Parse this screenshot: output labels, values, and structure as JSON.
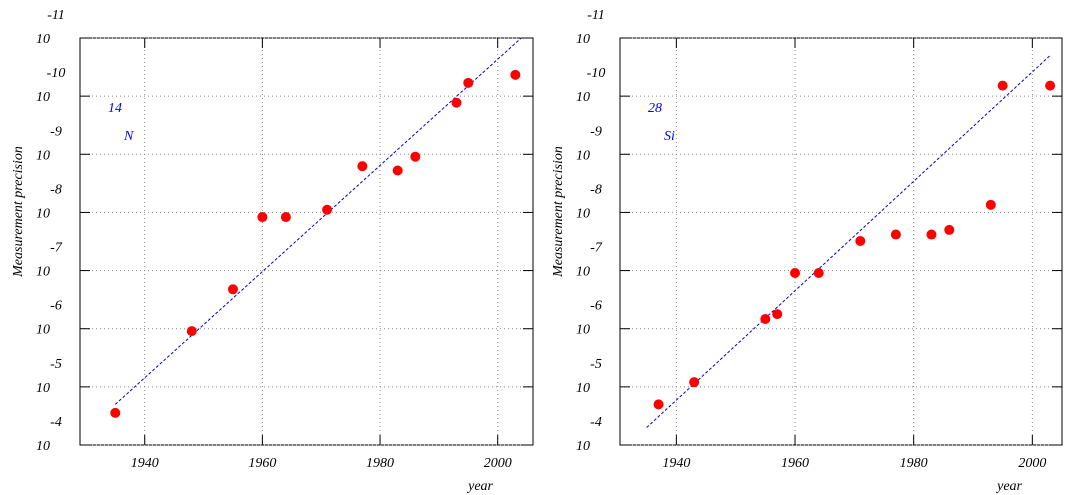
{
  "chart_data": [
    {
      "type": "scatter",
      "annotation": {
        "superscript": "14",
        "text": "N"
      },
      "x_label": "year",
      "y_label": "Measurement precision",
      "x": [
        1935,
        1948,
        1955,
        1960,
        1964,
        1971,
        1977,
        1983,
        1986,
        1993,
        1995,
        2003
      ],
      "values": [
        2.8e-05,
        1.1e-06,
        2.1e-07,
        1.2e-08,
        1.2e-08,
        9e-09,
        1.6e-09,
        1.9e-09,
        1.1e-09,
        1.3e-10,
        5.9e-11,
        4.3e-11
      ],
      "color": "#ff0000",
      "fit": {
        "x": [
          1935,
          2004
        ],
        "values": [
          2e-05,
          1e-11
        ],
        "color": "#0000cc"
      },
      "xlim": [
        1929,
        2006
      ],
      "xticks": [
        1940,
        1960,
        1980,
        2000
      ],
      "ylim": [
        0.0001,
        1e-11
      ],
      "log_y": true,
      "grid": true,
      "yticks": [
        {
          "value": 0.0001,
          "label": "10",
          "exponent": "-4"
        },
        {
          "value": 1e-05,
          "label": "10",
          "exponent": "-5"
        },
        {
          "value": 1e-06,
          "label": "10",
          "exponent": "-6"
        },
        {
          "value": 1e-07,
          "label": "10",
          "exponent": "-7"
        },
        {
          "value": 1e-08,
          "label": "10",
          "exponent": "-8"
        },
        {
          "value": 1e-09,
          "label": "10",
          "exponent": "-9"
        },
        {
          "value": 1e-10,
          "label": "10",
          "exponent": "-10"
        },
        {
          "value": 1e-11,
          "label": "10",
          "exponent": "-11"
        }
      ]
    },
    {
      "type": "scatter",
      "annotation": {
        "superscript": "28",
        "text": "Si"
      },
      "x_label": "year",
      "y_label": "Measurement precision",
      "x": [
        1937,
        1943,
        1955,
        1957,
        1960,
        1964,
        1971,
        1977,
        1983,
        1986,
        1993,
        1995,
        2003
      ],
      "values": [
        2e-05,
        8.3e-06,
        6.8e-07,
        5.6e-07,
        1.1e-07,
        1.1e-07,
        3.1e-08,
        2.4e-08,
        2.4e-08,
        2e-08,
        7.4e-09,
        6.6e-11,
        6.6e-11
      ],
      "color": "#ff0000",
      "fit": {
        "x": [
          1935,
          2003
        ],
        "values": [
          5e-05,
          2e-11
        ],
        "color": "#0000cc"
      },
      "xlim": [
        1930.5,
        2005
      ],
      "xticks": [
        1940,
        1960,
        1980,
        2000
      ],
      "ylim": [
        0.0001,
        1e-11
      ],
      "log_y": true,
      "grid": true,
      "yticks": [
        {
          "value": 0.0001,
          "label": "10",
          "exponent": "-4"
        },
        {
          "value": 1e-05,
          "label": "10",
          "exponent": "-5"
        },
        {
          "value": 1e-06,
          "label": "10",
          "exponent": "-6"
        },
        {
          "value": 1e-07,
          "label": "10",
          "exponent": "-7"
        },
        {
          "value": 1e-08,
          "label": "10",
          "exponent": "-8"
        },
        {
          "value": 1e-09,
          "label": "10",
          "exponent": "-9"
        },
        {
          "value": 1e-10,
          "label": "10",
          "exponent": "-10"
        },
        {
          "value": 1e-11,
          "label": "10",
          "exponent": "-11"
        }
      ]
    }
  ]
}
